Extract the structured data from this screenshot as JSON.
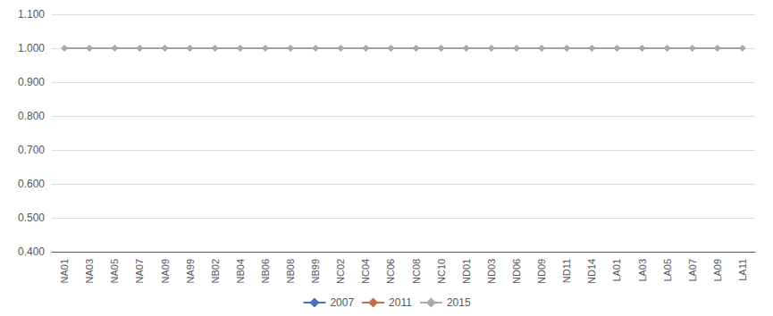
{
  "chart_data": {
    "type": "line",
    "categories": [
      "NA01",
      "NA03",
      "NA05",
      "NA07",
      "NA09",
      "NA99",
      "NB02",
      "NB04",
      "NB06",
      "NB08",
      "NB99",
      "NC02",
      "NC04",
      "NC06",
      "NC08",
      "NC10",
      "ND01",
      "ND03",
      "ND06",
      "ND09",
      "ND11",
      "ND14",
      "LA01",
      "LA03",
      "LA05",
      "LA07",
      "LA09",
      "LA11"
    ],
    "series": [
      {
        "name": "2007",
        "color": "#4472C4",
        "marker": "diamond",
        "values": [
          1.0,
          1.0,
          1.0,
          1.0,
          1.0,
          1.0,
          1.0,
          1.0,
          1.0,
          1.0,
          1.0,
          1.0,
          1.0,
          1.0,
          1.0,
          1.0,
          1.0,
          1.0,
          1.0,
          1.0,
          1.0,
          1.0,
          1.0,
          1.0,
          1.0,
          1.0,
          1.0,
          1.0
        ]
      },
      {
        "name": "2011",
        "color": "#C0704A",
        "marker": "diamond",
        "values": [
          1.0,
          1.0,
          1.0,
          1.0,
          1.0,
          1.0,
          1.0,
          1.0,
          1.0,
          1.0,
          1.0,
          1.0,
          1.0,
          1.0,
          1.0,
          1.0,
          1.0,
          1.0,
          1.0,
          1.0,
          1.0,
          1.0,
          1.0,
          1.0,
          1.0,
          1.0,
          1.0,
          1.0
        ]
      },
      {
        "name": "2015",
        "color": "#AAAAAA",
        "marker": "diamond",
        "values": [
          1.0,
          1.0,
          1.0,
          1.0,
          1.0,
          1.0,
          1.0,
          1.0,
          1.0,
          1.0,
          1.0,
          1.0,
          1.0,
          1.0,
          1.0,
          1.0,
          1.0,
          1.0,
          1.0,
          1.0,
          1.0,
          1.0,
          1.0,
          1.0,
          1.0,
          1.0,
          1.0,
          1.0
        ]
      }
    ],
    "ylim": [
      0.4,
      1.1
    ],
    "yticks": [
      {
        "value": 0.4,
        "label": "0.400"
      },
      {
        "value": 0.5,
        "label": "0.500"
      },
      {
        "value": 0.6,
        "label": "0.600"
      },
      {
        "value": 0.7,
        "label": "0.700"
      },
      {
        "value": 0.8,
        "label": "0.800"
      },
      {
        "value": 0.9,
        "label": "0.900"
      },
      {
        "value": 1.0,
        "label": "1.000"
      },
      {
        "value": 1.1,
        "label": "1.100"
      }
    ],
    "grid": true,
    "legend": "bottom"
  }
}
